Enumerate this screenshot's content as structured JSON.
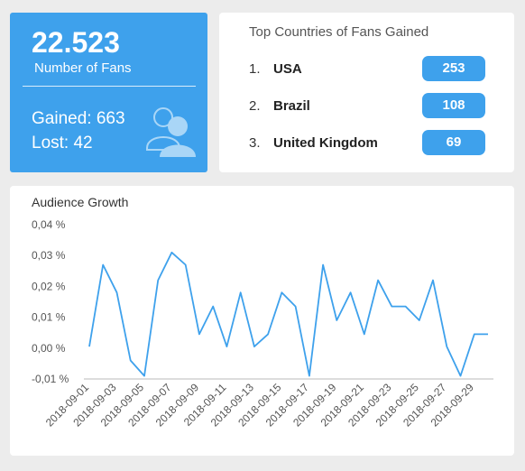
{
  "fans": {
    "value": "22.523",
    "label": "Number of Fans",
    "gained": "Gained: 663",
    "lost": "Lost: 42",
    "icon": "users-icon"
  },
  "top_countries": {
    "title": "Top Countries of Fans Gained",
    "items": [
      {
        "rank": "1.",
        "name": "USA",
        "count": "253"
      },
      {
        "rank": "2.",
        "name": "Brazil",
        "count": "108"
      },
      {
        "rank": "3.",
        "name": "United Kingdom",
        "count": "69"
      }
    ]
  },
  "colors": {
    "accent": "#3ea1ec",
    "background": "#ececec",
    "line": "#3ea1ec"
  },
  "chart_data": {
    "type": "line",
    "title": "Audience Growth",
    "xlabel": "",
    "ylabel": "",
    "ylim": [
      -0.01,
      0.04
    ],
    "y_ticks": [
      "0,04 %",
      "0,03 %",
      "0,02 %",
      "0,01 %",
      "0,00 %",
      "-0,01 %"
    ],
    "y_tick_values": [
      0.04,
      0.03,
      0.02,
      0.01,
      0.0,
      -0.01
    ],
    "x_tick_labels": [
      "2018-09-01",
      "2018-09-03",
      "2018-09-05",
      "2018-09-07",
      "2018-09-09",
      "2018-09-11",
      "2018-09-13",
      "2018-09-15",
      "2018-09-17",
      "2018-09-19",
      "2018-09-21",
      "2018-09-23",
      "2018-09-25",
      "2018-09-27",
      "2018-09-29"
    ],
    "series": [
      {
        "x": [
          "2018-09-01",
          "2018-09-02",
          "2018-09-03",
          "2018-09-04",
          "2018-09-05",
          "2018-09-06",
          "2018-09-07",
          "2018-09-08",
          "2018-09-09",
          "2018-09-10",
          "2018-09-11",
          "2018-09-12",
          "2018-09-13",
          "2018-09-14",
          "2018-09-15",
          "2018-09-16",
          "2018-09-17",
          "2018-09-18",
          "2018-09-19",
          "2018-09-20",
          "2018-09-21",
          "2018-09-22",
          "2018-09-23",
          "2018-09-24",
          "2018-09-25",
          "2018-09-26",
          "2018-09-27",
          "2018-09-28",
          "2018-09-29",
          "2018-09-30"
        ],
        "values": [
          0.0005,
          0.027,
          0.018,
          -0.004,
          -0.009,
          0.022,
          0.031,
          0.027,
          0.0045,
          0.0135,
          0.0005,
          0.018,
          0.0005,
          0.0045,
          0.018,
          0.0135,
          -0.009,
          0.027,
          0.009,
          0.018,
          0.0045,
          0.022,
          0.0135,
          0.0135,
          0.009,
          0.022,
          0.0005,
          -0.009,
          0.0045,
          0.0045
        ]
      }
    ],
    "grid": false
  }
}
